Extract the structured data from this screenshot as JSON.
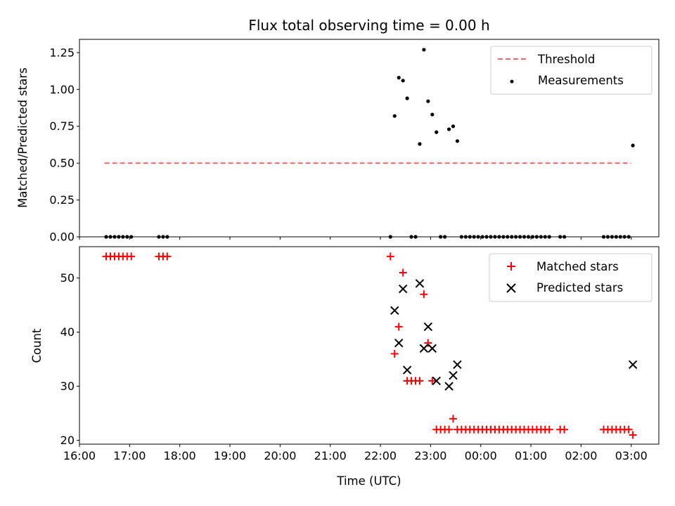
{
  "chart_data": [
    {
      "type": "scatter",
      "title": "Flux total observing time = 0.00 h",
      "xlabel": "",
      "ylabel": "Matched/Predicted stars",
      "ylim": [
        0,
        1.34
      ],
      "xlim": [
        "16:00",
        "03:33"
      ],
      "yticks": [
        "0.00",
        "0.25",
        "0.50",
        "0.75",
        "1.00",
        "1.25"
      ],
      "legend_position": "top-right",
      "threshold": {
        "name": "Threshold",
        "value": 0.5,
        "x_start": "16:30",
        "x_end": "03:00",
        "color": "#ff6666",
        "style": "dashed"
      },
      "series": [
        {
          "name": "Measurements",
          "color": "#000000",
          "points": [
            [
              "16:32",
              0
            ],
            [
              "16:37",
              0
            ],
            [
              "16:42",
              0
            ],
            [
              "16:47",
              0
            ],
            [
              "16:52",
              0
            ],
            [
              "16:57",
              0
            ],
            [
              "17:02",
              0
            ],
            [
              "17:35",
              0
            ],
            [
              "17:40",
              0
            ],
            [
              "17:45",
              0
            ],
            [
              "22:12",
              0
            ],
            [
              "22:17",
              0.82
            ],
            [
              "22:22",
              1.08
            ],
            [
              "22:27",
              1.06
            ],
            [
              "22:32",
              0.94
            ],
            [
              "22:37",
              0
            ],
            [
              "22:42",
              0
            ],
            [
              "22:47",
              0.63
            ],
            [
              "22:52",
              1.27
            ],
            [
              "22:57",
              0.92
            ],
            [
              "23:02",
              0.83
            ],
            [
              "23:07",
              0.71
            ],
            [
              "23:12",
              0
            ],
            [
              "23:17",
              0
            ],
            [
              "23:22",
              0.73
            ],
            [
              "23:27",
              0.75
            ],
            [
              "23:32",
              0.65
            ],
            [
              "23:37",
              0
            ],
            [
              "23:42",
              0
            ],
            [
              "23:47",
              0
            ],
            [
              "23:52",
              0
            ],
            [
              "23:57",
              0
            ],
            [
              "00:02",
              0
            ],
            [
              "00:07",
              0
            ],
            [
              "00:12",
              0
            ],
            [
              "00:17",
              0
            ],
            [
              "00:22",
              0
            ],
            [
              "00:27",
              0
            ],
            [
              "00:32",
              0
            ],
            [
              "00:37",
              0
            ],
            [
              "00:42",
              0
            ],
            [
              "00:47",
              0
            ],
            [
              "00:52",
              0
            ],
            [
              "00:57",
              0
            ],
            [
              "01:02",
              0
            ],
            [
              "01:07",
              0
            ],
            [
              "01:12",
              0
            ],
            [
              "01:17",
              0
            ],
            [
              "01:22",
              0
            ],
            [
              "01:35",
              0
            ],
            [
              "01:40",
              0
            ],
            [
              "02:27",
              0
            ],
            [
              "02:32",
              0
            ],
            [
              "02:37",
              0
            ],
            [
              "02:42",
              0
            ],
            [
              "02:47",
              0
            ],
            [
              "02:52",
              0
            ],
            [
              "02:57",
              0
            ],
            [
              "03:02",
              0.62
            ]
          ]
        }
      ]
    },
    {
      "type": "scatter",
      "title": "",
      "xlabel": "Time (UTC)",
      "ylabel": "Count",
      "ylim": [
        19.3,
        55.8
      ],
      "xlim": [
        "16:00",
        "03:33"
      ],
      "yticks": [
        "20",
        "30",
        "40",
        "50"
      ],
      "xticks": [
        "16:00",
        "17:00",
        "18:00",
        "19:00",
        "20:00",
        "21:00",
        "22:00",
        "23:00",
        "00:00",
        "01:00",
        "02:00",
        "03:00"
      ],
      "legend_position": "top-right",
      "series": [
        {
          "name": "Matched stars",
          "marker": "plus",
          "color": "#ff0000",
          "points": [
            [
              "16:32",
              54
            ],
            [
              "16:37",
              54
            ],
            [
              "16:42",
              54
            ],
            [
              "16:47",
              54
            ],
            [
              "16:52",
              54
            ],
            [
              "16:57",
              54
            ],
            [
              "17:02",
              54
            ],
            [
              "17:35",
              54
            ],
            [
              "17:40",
              54
            ],
            [
              "17:45",
              54
            ],
            [
              "22:12",
              54
            ],
            [
              "22:17",
              36
            ],
            [
              "22:22",
              41
            ],
            [
              "22:27",
              51
            ],
            [
              "22:32",
              31
            ],
            [
              "22:37",
              31
            ],
            [
              "22:42",
              31
            ],
            [
              "22:47",
              31
            ],
            [
              "22:52",
              47
            ],
            [
              "22:57",
              38
            ],
            [
              "23:02",
              31
            ],
            [
              "23:07",
              22
            ],
            [
              "23:12",
              22
            ],
            [
              "23:17",
              22
            ],
            [
              "23:22",
              22
            ],
            [
              "23:27",
              24
            ],
            [
              "23:32",
              22
            ],
            [
              "23:37",
              22
            ],
            [
              "23:42",
              22
            ],
            [
              "23:47",
              22
            ],
            [
              "23:52",
              22
            ],
            [
              "23:57",
              22
            ],
            [
              "00:02",
              22
            ],
            [
              "00:07",
              22
            ],
            [
              "00:12",
              22
            ],
            [
              "00:17",
              22
            ],
            [
              "00:22",
              22
            ],
            [
              "00:27",
              22
            ],
            [
              "00:32",
              22
            ],
            [
              "00:37",
              22
            ],
            [
              "00:42",
              22
            ],
            [
              "00:47",
              22
            ],
            [
              "00:52",
              22
            ],
            [
              "00:57",
              22
            ],
            [
              "01:02",
              22
            ],
            [
              "01:07",
              22
            ],
            [
              "01:12",
              22
            ],
            [
              "01:17",
              22
            ],
            [
              "01:22",
              22
            ],
            [
              "01:35",
              22
            ],
            [
              "01:40",
              22
            ],
            [
              "02:27",
              22
            ],
            [
              "02:32",
              22
            ],
            [
              "02:37",
              22
            ],
            [
              "02:42",
              22
            ],
            [
              "02:47",
              22
            ],
            [
              "02:52",
              22
            ],
            [
              "02:57",
              22
            ],
            [
              "03:02",
              21
            ]
          ]
        },
        {
          "name": "Predicted stars",
          "marker": "x",
          "color": "#000000",
          "points": [
            [
              "22:17",
              44
            ],
            [
              "22:22",
              38
            ],
            [
              "22:27",
              48
            ],
            [
              "22:32",
              33
            ],
            [
              "22:47",
              49
            ],
            [
              "22:52",
              37
            ],
            [
              "22:57",
              41
            ],
            [
              "23:02",
              37
            ],
            [
              "23:07",
              31
            ],
            [
              "23:22",
              30
            ],
            [
              "23:27",
              32
            ],
            [
              "23:32",
              34
            ],
            [
              "03:02",
              34
            ]
          ]
        }
      ]
    }
  ]
}
